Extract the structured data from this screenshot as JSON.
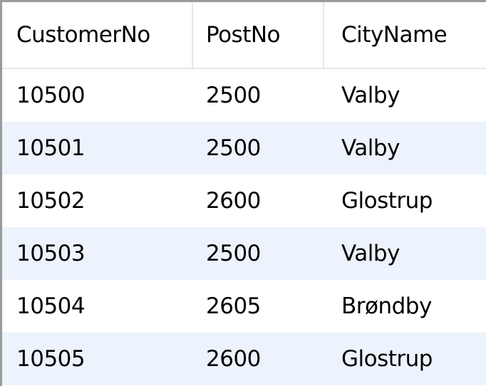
{
  "table": {
    "columns": [
      "CustomerNo",
      "PostNo",
      "CityName"
    ],
    "rows": [
      [
        "10500",
        "2500",
        "Valby"
      ],
      [
        "10501",
        "2500",
        "Valby"
      ],
      [
        "10502",
        "2600",
        "Glostrup"
      ],
      [
        "10503",
        "2500",
        "Valby"
      ],
      [
        "10504",
        "2605",
        "Brøndby"
      ],
      [
        "10505",
        "2600",
        "Glostrup"
      ]
    ]
  },
  "colors": {
    "alt_row": "#edf3fc",
    "grid_border": "#9a9a9a",
    "cell_divider": "#e6e6e6"
  }
}
